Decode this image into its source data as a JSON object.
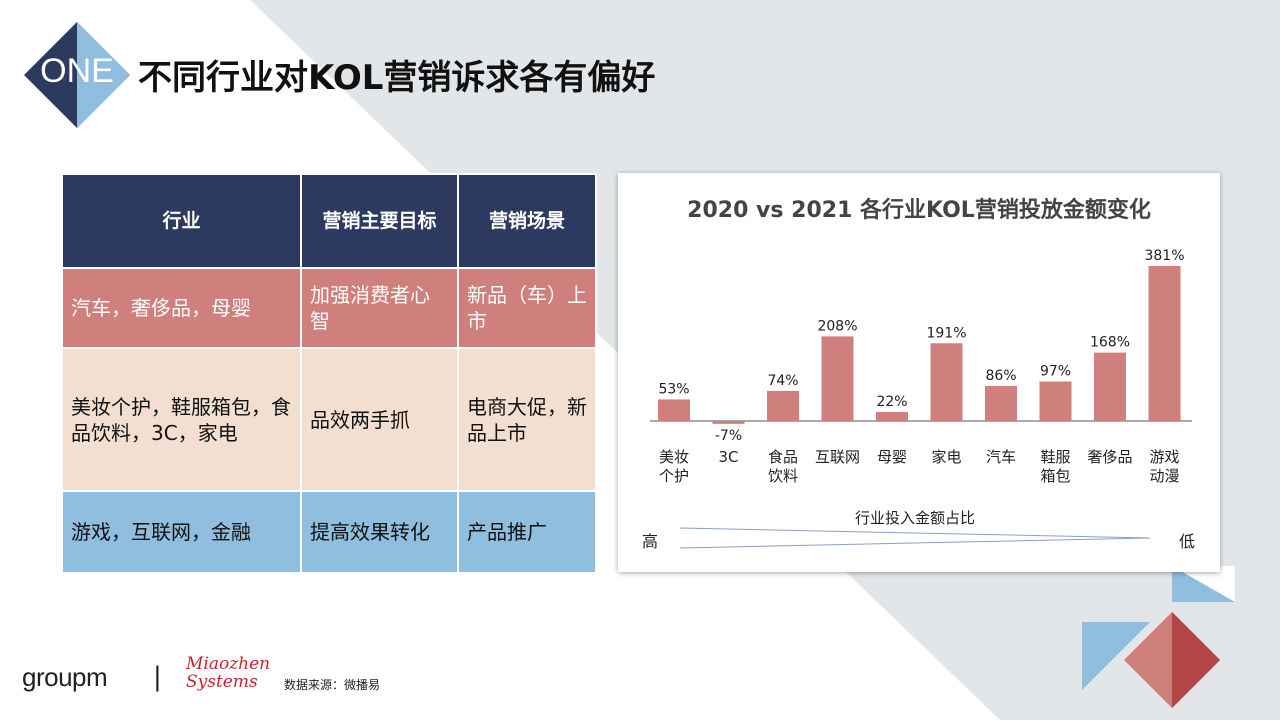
{
  "badge": {
    "label": "ONE"
  },
  "page_title": "不同行业对KOL营销诉求各有偏好",
  "table": {
    "headers": [
      "行业",
      "营销主要目标",
      "营销场景"
    ],
    "rows": [
      [
        "汽车，奢侈品，母婴",
        "加强消费者心智",
        "新品（车）上市"
      ],
      [
        "美妆个护，鞋服箱包，食品饮料，3C，家电",
        "品效两手抓",
        "电商大促，新品上市"
      ],
      [
        "游戏，互联网，金融",
        "提高效果转化",
        "产品推广"
      ]
    ]
  },
  "chart_data": {
    "type": "bar",
    "title": "2020 vs 2021 各行业KOL营销投放金额变化",
    "categories": [
      "美妆个护",
      "3C",
      "食品饮料",
      "互联网",
      "母婴",
      "家电",
      "汽车",
      "鞋服箱包",
      "奢侈品",
      "游戏动漫"
    ],
    "category_lines": [
      [
        "美妆",
        "个护"
      ],
      [
        "3C"
      ],
      [
        "食品",
        "饮料"
      ],
      [
        "互联网"
      ],
      [
        "母婴"
      ],
      [
        "家电"
      ],
      [
        "汽车"
      ],
      [
        "鞋服",
        "箱包"
      ],
      [
        "奢侈品"
      ],
      [
        "游戏",
        "动漫"
      ]
    ],
    "values": [
      53,
      -7,
      74,
      208,
      22,
      191,
      86,
      97,
      168,
      381
    ],
    "labels": [
      "53%",
      "-7%",
      "74%",
      "208%",
      "22%",
      "191%",
      "86%",
      "97%",
      "168%",
      "381%"
    ],
    "unit": "%",
    "ylim": [
      -7,
      381
    ],
    "bar_color": "#cf7f7c",
    "x_annotation": {
      "label": "行业投入金额占比",
      "high": "高",
      "low": "低"
    }
  },
  "footer": {
    "logo_groupm": "groupm",
    "separator": "|",
    "logo_miaozhen_line1": "Miaozhen",
    "logo_miaozhen_line2": "Systems",
    "source": "数据来源：微播易"
  },
  "colors": {
    "navy": "#2b3a5e",
    "red": "#cf7f7c",
    "peach": "#f2dfcf",
    "blue": "#8fbede"
  }
}
